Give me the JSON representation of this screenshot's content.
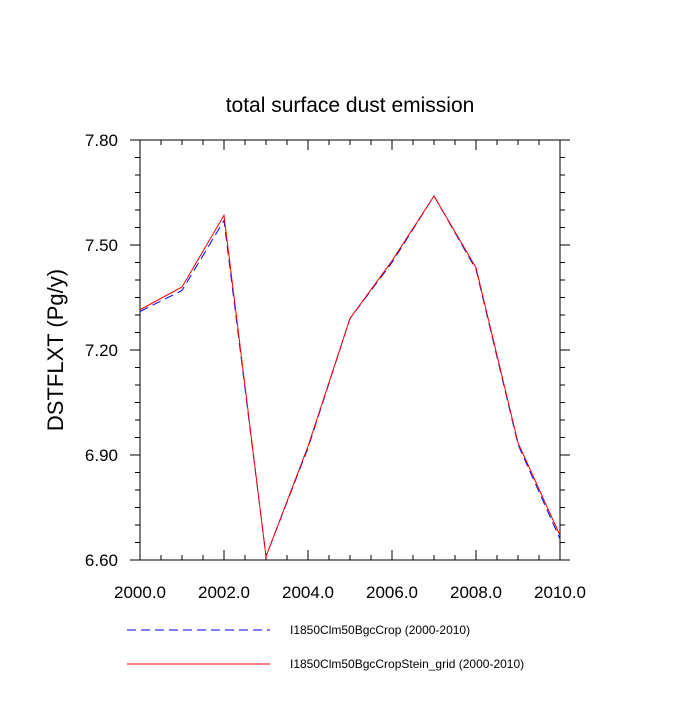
{
  "chart_data": {
    "type": "line",
    "title": "total surface dust emission",
    "xlabel": "",
    "ylabel": "DSTFLXT  (Pg/y)",
    "x": [
      2000,
      2001,
      2002,
      2003,
      2004,
      2005,
      2006,
      2007,
      2008,
      2009,
      2010
    ],
    "x_ticks": [
      "2000.0",
      "2002.0",
      "2004.0",
      "2006.0",
      "2008.0",
      "2010.0"
    ],
    "y_ticks": [
      "6.60",
      "6.90",
      "7.20",
      "7.50",
      "7.80"
    ],
    "xlim": [
      2000,
      2010
    ],
    "ylim": [
      6.6,
      7.8
    ],
    "grid": false,
    "legend_position": "bottom",
    "series": [
      {
        "name": "I1850Clm50BgcCrop (2000-2010)",
        "color": "#0000ff",
        "style": "dashed",
        "values": [
          7.31,
          7.37,
          7.57,
          6.61,
          6.92,
          7.29,
          7.45,
          7.64,
          7.43,
          6.93,
          6.66
        ]
      },
      {
        "name": "I1850Clm50BgcCropStein_grid (2000-2010)",
        "color": "#ff0000",
        "style": "solid",
        "values": [
          7.315,
          7.38,
          7.585,
          6.61,
          6.925,
          7.29,
          7.455,
          7.64,
          7.435,
          6.935,
          6.67
        ]
      }
    ]
  }
}
